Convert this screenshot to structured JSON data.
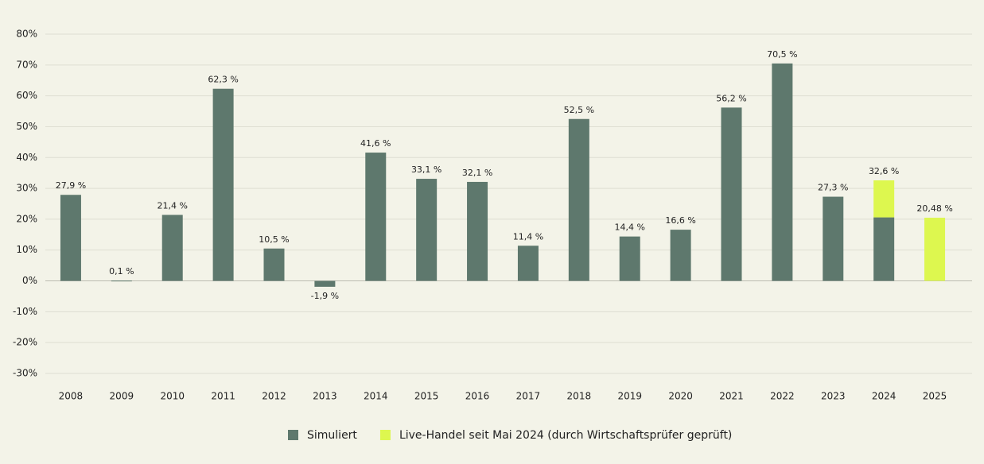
{
  "chart_data": {
    "type": "bar",
    "categories": [
      "2008",
      "2009",
      "2010",
      "2011",
      "2012",
      "2013",
      "2014",
      "2015",
      "2016",
      "2017",
      "2018",
      "2019",
      "2020",
      "2021",
      "2022",
      "2023",
      "2024",
      "2025"
    ],
    "series": [
      {
        "name": "Simuliert",
        "color": "#5e786d",
        "values": [
          27.9,
          0.1,
          21.4,
          62.3,
          10.5,
          -1.9,
          41.6,
          33.1,
          32.1,
          11.4,
          52.5,
          14.4,
          16.6,
          56.2,
          70.5,
          27.3,
          20.6,
          null
        ]
      },
      {
        "name": "Live-Handel seit Mai 2024 (durch Wirtschaftsprüfer geprüft)",
        "color": "#ddf74f",
        "values": [
          null,
          null,
          null,
          null,
          null,
          null,
          null,
          null,
          null,
          null,
          null,
          null,
          null,
          null,
          null,
          null,
          12.0,
          20.48
        ]
      }
    ],
    "totals": {
      "values": [
        27.9,
        0.1,
        21.4,
        62.3,
        10.5,
        -1.9,
        41.6,
        33.1,
        32.1,
        11.4,
        52.5,
        14.4,
        16.6,
        56.2,
        70.5,
        27.3,
        32.6,
        20.48
      ],
      "value_labels": [
        "27,9 %",
        "0,1 %",
        "21,4 %",
        "62,3 %",
        "10,5 %",
        "-1,9 %",
        "41,6 %",
        "33,1 %",
        "32,1 %",
        "11,4 %",
        "52,5 %",
        "14,4 %",
        "16,6 %",
        "56,2 %",
        "70,5 %",
        "27,3 %",
        "32,6 %",
        "20,48 %"
      ]
    },
    "stacked": true,
    "ylim": [
      -30,
      80
    ],
    "yticks": [
      {
        "value": -30,
        "label": "-30%"
      },
      {
        "value": -20,
        "label": "-20%"
      },
      {
        "value": -10,
        "label": "-10%"
      },
      {
        "value": 0,
        "label": "0%"
      },
      {
        "value": 10,
        "label": "10%"
      },
      {
        "value": 20,
        "label": "20%"
      },
      {
        "value": 30,
        "label": "30%"
      },
      {
        "value": 40,
        "label": "40%"
      },
      {
        "value": 50,
        "label": "50%"
      },
      {
        "value": 60,
        "label": "60%"
      },
      {
        "value": 70,
        "label": "70%"
      },
      {
        "value": 80,
        "label": "80%"
      }
    ],
    "grid": true,
    "legend": "bottom"
  }
}
